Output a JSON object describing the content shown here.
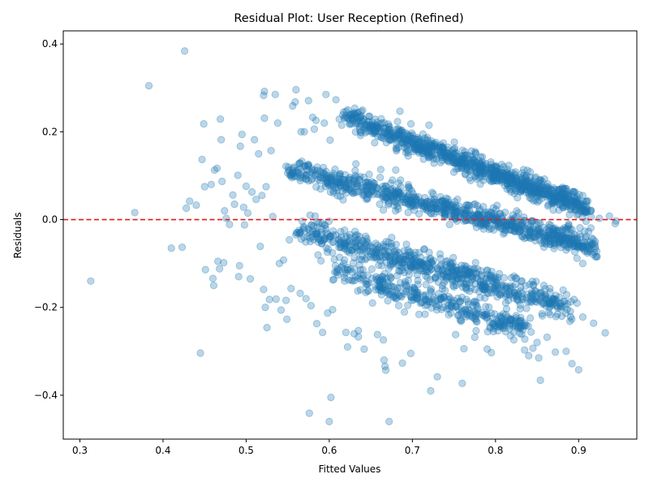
{
  "chart_data": {
    "type": "scatter",
    "title": "Residual Plot: User Reception (Refined)",
    "xlabel": "Fitted Values",
    "ylabel": "Residuals",
    "xlim": [
      0.28,
      0.97
    ],
    "ylim": [
      -0.5,
      0.43
    ],
    "x_ticks": [
      0.3,
      0.4,
      0.5,
      0.6,
      0.7,
      0.8,
      0.9
    ],
    "x_tick_labels": [
      "0.3",
      "0.4",
      "0.5",
      "0.6",
      "0.7",
      "0.8",
      "0.9"
    ],
    "y_ticks": [
      -0.4,
      -0.2,
      0.0,
      0.2,
      0.4
    ],
    "y_tick_labels": [
      "−0.4",
      "−0.2",
      "0.0",
      "0.2",
      "0.4"
    ],
    "grid": false,
    "reference_line": {
      "y": 0.0,
      "style": "dashed",
      "color": "#e41a1c"
    },
    "point_color": "#1f77b4",
    "point_opacity": 0.3,
    "series": [
      {
        "points": [
          [
            0.313,
            -0.14
          ],
          [
            0.366,
            0.016
          ],
          [
            0.383,
            0.305
          ],
          [
            0.41,
            -0.065
          ],
          [
            0.423,
            -0.063
          ],
          [
            0.426,
            0.384
          ],
          [
            0.428,
            0.026
          ],
          [
            0.432,
            0.042
          ],
          [
            0.44,
            0.033
          ],
          [
            0.445,
            -0.304
          ],
          [
            0.447,
            0.137
          ],
          [
            0.449,
            0.218
          ],
          [
            0.45,
            0.075
          ],
          [
            0.451,
            -0.114
          ],
          [
            0.458,
            0.08
          ],
          [
            0.46,
            -0.134
          ],
          [
            0.461,
            -0.15
          ],
          [
            0.462,
            0.113
          ],
          [
            0.465,
            0.117
          ],
          [
            0.466,
            -0.095
          ],
          [
            0.468,
            -0.112
          ],
          [
            0.469,
            0.229
          ],
          [
            0.47,
            0.182
          ],
          [
            0.471,
            0.087
          ],
          [
            0.473,
            -0.098
          ],
          [
            0.474,
            0.02
          ],
          [
            0.476,
            0.003
          ],
          [
            0.48,
            -0.011
          ],
          [
            0.484,
            0.056
          ],
          [
            0.486,
            0.035
          ],
          [
            0.49,
            0.101
          ],
          [
            0.491,
            -0.13
          ],
          [
            0.492,
            -0.105
          ],
          [
            0.493,
            0.167
          ],
          [
            0.495,
            0.194
          ],
          [
            0.497,
            0.028
          ],
          [
            0.498,
            -0.012
          ],
          [
            0.5,
            0.076
          ],
          [
            0.502,
            0.015
          ],
          [
            0.505,
            -0.135
          ],
          [
            0.507,
            0.063
          ],
          [
            0.51,
            0.182
          ],
          [
            0.512,
            0.046
          ],
          [
            0.515,
            0.15
          ],
          [
            0.517,
            -0.061
          ],
          [
            0.519,
            0.055
          ],
          [
            0.521,
            -0.159
          ],
          [
            0.521,
            0.283
          ],
          [
            0.522,
            0.292
          ],
          [
            0.522,
            0.231
          ],
          [
            0.523,
            -0.2
          ],
          [
            0.524,
            0.075
          ],
          [
            0.525,
            -0.246
          ],
          [
            0.528,
            -0.182
          ],
          [
            0.53,
            0.157
          ],
          [
            0.532,
            0.007
          ],
          [
            0.535,
            0.285
          ],
          [
            0.536,
            -0.181
          ],
          [
            0.538,
            0.22
          ],
          [
            0.54,
            -0.1
          ],
          [
            0.542,
            -0.206
          ],
          [
            0.545,
            -0.092
          ],
          [
            0.548,
            -0.184
          ],
          [
            0.549,
            -0.227
          ],
          [
            0.55,
            0.106
          ],
          [
            0.552,
            -0.046
          ],
          [
            0.554,
            -0.157
          ],
          [
            0.556,
            0.259
          ],
          [
            0.559,
            0.268
          ],
          [
            0.56,
            0.296
          ],
          [
            0.562,
            0.112
          ],
          [
            0.565,
            -0.168
          ],
          [
            0.566,
            0.2
          ],
          [
            0.57,
            0.2
          ],
          [
            0.572,
            -0.18
          ],
          [
            0.575,
            0.271
          ],
          [
            0.576,
            -0.441
          ],
          [
            0.577,
            0.108
          ],
          [
            0.578,
            -0.196
          ],
          [
            0.58,
            0.233
          ],
          [
            0.582,
            0.206
          ],
          [
            0.584,
            0.226
          ],
          [
            0.585,
            -0.237
          ],
          [
            0.59,
            -0.094
          ],
          [
            0.592,
            -0.257
          ],
          [
            0.594,
            0.22
          ],
          [
            0.596,
            0.285
          ],
          [
            0.598,
            -0.213
          ],
          [
            0.6,
            -0.46
          ],
          [
            0.601,
            0.181
          ],
          [
            0.602,
            -0.405
          ],
          [
            0.604,
            -0.205
          ],
          [
            0.608,
            0.273
          ],
          [
            0.612,
            0.229
          ],
          [
            0.615,
            0.215
          ],
          [
            0.62,
            -0.257
          ],
          [
            0.622,
            -0.29
          ],
          [
            0.625,
            0.24
          ],
          [
            0.63,
            -0.26
          ],
          [
            0.632,
            0.127
          ],
          [
            0.635,
            -0.253
          ],
          [
            0.635,
            -0.267
          ],
          [
            0.638,
            0.198
          ],
          [
            0.642,
            -0.295
          ],
          [
            0.648,
            0.103
          ],
          [
            0.652,
            -0.19
          ],
          [
            0.655,
            0.2
          ],
          [
            0.658,
            -0.262
          ],
          [
            0.662,
            0.114
          ],
          [
            0.665,
            -0.274
          ],
          [
            0.666,
            -0.32
          ],
          [
            0.667,
            -0.334
          ],
          [
            0.668,
            -0.343
          ],
          [
            0.672,
            -0.46
          ],
          [
            0.674,
            -0.132
          ],
          [
            0.68,
            0.113
          ],
          [
            0.685,
            0.247
          ],
          [
            0.688,
            -0.327
          ],
          [
            0.695,
            0.145
          ],
          [
            0.698,
            -0.305
          ],
          [
            0.705,
            0.046
          ],
          [
            0.708,
            -0.216
          ],
          [
            0.715,
            0.05
          ],
          [
            0.72,
            0.215
          ],
          [
            0.722,
            -0.39
          ],
          [
            0.73,
            -0.358
          ],
          [
            0.735,
            0.042
          ],
          [
            0.745,
            0.028
          ],
          [
            0.752,
            -0.262
          ],
          [
            0.76,
            -0.373
          ],
          [
            0.762,
            -0.294
          ],
          [
            0.775,
            -0.268
          ],
          [
            0.79,
            -0.295
          ],
          [
            0.795,
            -0.303
          ],
          [
            0.802,
            -0.244
          ],
          [
            0.812,
            -0.255
          ],
          [
            0.818,
            -0.265
          ],
          [
            0.822,
            -0.274
          ],
          [
            0.83,
            -0.247
          ],
          [
            0.835,
            -0.297
          ],
          [
            0.84,
            -0.31
          ],
          [
            0.845,
            -0.293
          ],
          [
            0.85,
            -0.28
          ],
          [
            0.852,
            -0.315
          ],
          [
            0.854,
            -0.366
          ],
          [
            0.862,
            -0.268
          ],
          [
            0.872,
            -0.302
          ],
          [
            0.885,
            -0.3
          ],
          [
            0.892,
            -0.328
          ],
          [
            0.9,
            -0.342
          ],
          [
            0.905,
            -0.222
          ],
          [
            0.918,
            -0.236
          ],
          [
            0.932,
            -0.258
          ],
          [
            0.905,
            -0.1
          ],
          [
            0.898,
            -0.088
          ],
          [
            0.925,
            0.003
          ],
          [
            0.937,
            0.008
          ],
          [
            0.944,
            -0.009
          ],
          [
            0.945,
            -0.003
          ],
          [
            0.915,
            0.021
          ],
          [
            0.899,
            -0.05
          ],
          [
            0.91,
            0.02
          ]
        ],
        "bands": [
          {
            "x_start": 0.62,
            "y_start": 0.235,
            "x_end": 0.91,
            "y_end": 0.025,
            "count": 950,
            "spread": 0.05
          },
          {
            "x_start": 0.55,
            "y_start": 0.115,
            "x_end": 0.92,
            "y_end": -0.06,
            "count": 850,
            "spread": 0.05
          },
          {
            "x_start": 0.56,
            "y_start": -0.02,
            "x_end": 0.89,
            "y_end": -0.2,
            "count": 650,
            "spread": 0.06
          },
          {
            "x_start": 0.6,
            "y_start": -0.11,
            "x_end": 0.84,
            "y_end": -0.25,
            "count": 350,
            "spread": 0.06
          }
        ]
      }
    ]
  }
}
